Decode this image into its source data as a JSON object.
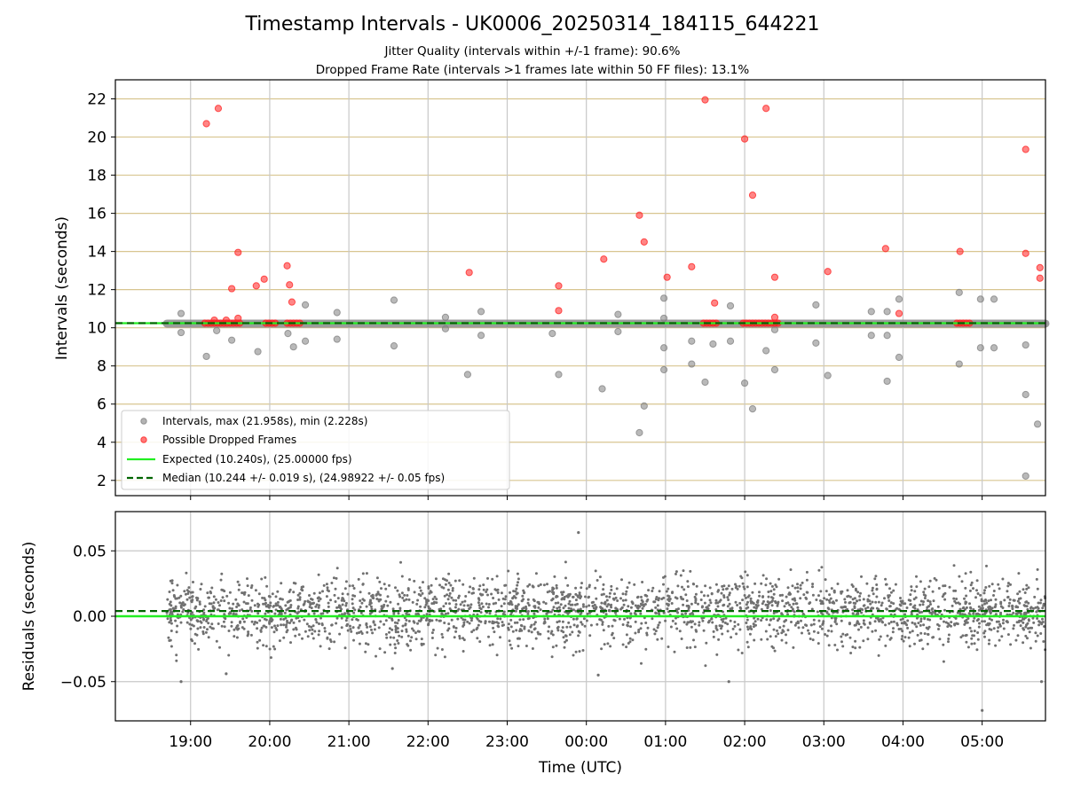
{
  "chart_data": [
    {
      "type": "scatter",
      "title": "Timestamp Intervals - UK0006_20250314_184115_644221",
      "subtitle_lines": [
        "Jitter Quality (intervals within +/-1 frame): 90.6%",
        "Dropped Frame Rate (intervals >1 frames late within 50 FF files): 13.1%"
      ],
      "ylabel": "Intervals (seconds)",
      "xlabel": "",
      "ylim": [
        1.2,
        23.0
      ],
      "yticks": [
        2,
        4,
        6,
        8,
        10,
        12,
        14,
        16,
        18,
        20,
        22
      ],
      "xlim_hours": [
        18.05,
        29.8
      ],
      "grid": true,
      "legend_position": "lower-left",
      "legend": [
        "Intervals, max (21.958s), min (2.228s)",
        "Possible Dropped Frames",
        "Expected (10.240s), (25.00000 fps)",
        "Median (10.244 +/- 0.019 s), (24.98922 +/- 0.05 fps)"
      ],
      "expected_value": 10.24,
      "median_value": 10.244,
      "baseline_band": {
        "x_start": 18.7,
        "x_end": 29.8,
        "y": 10.22
      },
      "series": [
        {
          "name": "Intervals, max (21.958s), min (2.228s)",
          "color": "#808080",
          "points": [
            [
              18.88,
              10.75
            ],
            [
              18.88,
              9.75
            ],
            [
              19.2,
              8.5
            ],
            [
              19.33,
              9.85
            ],
            [
              19.52,
              9.35
            ],
            [
              19.85,
              8.75
            ],
            [
              20.23,
              9.7
            ],
            [
              20.3,
              9.0
            ],
            [
              20.45,
              9.3
            ],
            [
              20.45,
              11.2
            ],
            [
              20.85,
              10.8
            ],
            [
              20.85,
              9.4
            ],
            [
              21.57,
              11.45
            ],
            [
              21.57,
              9.05
            ],
            [
              22.22,
              10.55
            ],
            [
              22.22,
              9.95
            ],
            [
              22.67,
              10.85
            ],
            [
              22.67,
              9.6
            ],
            [
              22.5,
              7.55
            ],
            [
              23.57,
              9.7
            ],
            [
              23.65,
              7.55
            ],
            [
              24.2,
              6.8
            ],
            [
              24.4,
              10.7
            ],
            [
              24.4,
              9.8
            ],
            [
              24.67,
              4.5
            ],
            [
              24.73,
              5.9
            ],
            [
              24.98,
              11.55
            ],
            [
              24.98,
              10.5
            ],
            [
              24.98,
              8.95
            ],
            [
              24.98,
              7.8
            ],
            [
              25.33,
              9.3
            ],
            [
              25.33,
              8.1
            ],
            [
              25.5,
              7.15
            ],
            [
              25.6,
              9.15
            ],
            [
              25.82,
              11.15
            ],
            [
              25.82,
              9.3
            ],
            [
              26.0,
              7.1
            ],
            [
              26.1,
              5.75
            ],
            [
              26.27,
              8.8
            ],
            [
              26.38,
              9.9
            ],
            [
              26.38,
              7.8
            ],
            [
              26.9,
              11.2
            ],
            [
              26.9,
              9.2
            ],
            [
              27.05,
              7.5
            ],
            [
              27.6,
              10.85
            ],
            [
              27.6,
              9.6
            ],
            [
              27.8,
              10.85
            ],
            [
              27.8,
              9.6
            ],
            [
              27.8,
              7.2
            ],
            [
              27.95,
              11.5
            ],
            [
              27.95,
              8.45
            ],
            [
              28.71,
              11.85
            ],
            [
              28.71,
              8.1
            ],
            [
              28.98,
              11.5
            ],
            [
              28.98,
              8.95
            ],
            [
              29.15,
              11.5
            ],
            [
              29.15,
              8.95
            ],
            [
              29.55,
              9.1
            ],
            [
              29.55,
              6.5
            ],
            [
              29.55,
              2.23
            ],
            [
              29.7,
              4.95
            ]
          ]
        },
        {
          "name": "Possible Dropped Frames",
          "color": "#ff2020",
          "points": [
            [
              19.2,
              20.7
            ],
            [
              19.35,
              21.5
            ],
            [
              19.6,
              13.95
            ],
            [
              19.52,
              12.05
            ],
            [
              19.83,
              12.2
            ],
            [
              19.93,
              12.55
            ],
            [
              20.22,
              13.25
            ],
            [
              20.25,
              12.25
            ],
            [
              20.28,
              11.35
            ],
            [
              19.6,
              10.5
            ],
            [
              22.52,
              12.9
            ],
            [
              23.65,
              12.2
            ],
            [
              23.65,
              10.9
            ],
            [
              24.22,
              13.6
            ],
            [
              24.67,
              15.9
            ],
            [
              24.73,
              14.5
            ],
            [
              25.02,
              12.65
            ],
            [
              25.33,
              13.2
            ],
            [
              25.5,
              21.95
            ],
            [
              25.62,
              11.3
            ],
            [
              26.0,
              19.9
            ],
            [
              26.1,
              16.95
            ],
            [
              26.27,
              21.5
            ],
            [
              26.38,
              12.65
            ],
            [
              26.38,
              10.55
            ],
            [
              27.05,
              12.95
            ],
            [
              27.78,
              14.15
            ],
            [
              27.95,
              10.75
            ],
            [
              28.72,
              14.0
            ],
            [
              29.55,
              13.9
            ],
            [
              29.55,
              19.35
            ],
            [
              29.73,
              13.15
            ],
            [
              29.73,
              12.6
            ],
            [
              19.3,
              10.4
            ],
            [
              19.45,
              10.4
            ]
          ]
        }
      ]
    },
    {
      "type": "scatter",
      "ylabel": "Residuals (seconds)",
      "xlabel": "Time (UTC)",
      "ylim": [
        -0.08,
        0.08
      ],
      "yticks": [
        0.05,
        0.0,
        -0.05
      ],
      "ytick_labels": [
        "0.05",
        "0.00",
        "−0.05"
      ],
      "xlim_hours": [
        18.05,
        29.8
      ],
      "x_ticks": [
        "19:00",
        "20:00",
        "21:00",
        "22:00",
        "23:00",
        "00:00",
        "01:00",
        "02:00",
        "03:00",
        "04:00",
        "05:00"
      ],
      "x_tick_hours": [
        19,
        20,
        21,
        22,
        23,
        24,
        25,
        26,
        27,
        28,
        29
      ],
      "residual_range": [
        -0.05,
        0.06
      ],
      "expected_residual": 0.0,
      "median_residual": 0.004,
      "notable_points": [
        [
          18.88,
          -0.05
        ],
        [
          19.45,
          -0.044
        ],
        [
          21.55,
          -0.04
        ],
        [
          23.9,
          0.064
        ],
        [
          24.15,
          -0.045
        ],
        [
          25.8,
          -0.05
        ],
        [
          29.0,
          -0.072
        ],
        [
          29.75,
          -0.05
        ]
      ],
      "series": [
        {
          "name": "",
          "color": "#707070"
        }
      ]
    }
  ],
  "colors": {
    "interval_gray": "#808080",
    "dropped_red": "#ff2020",
    "expected_green": "#22ee22",
    "median_darkgreen": "#006400",
    "hgrid_tan": "#d8c590",
    "vgrid_gray": "#c8c8c8"
  }
}
